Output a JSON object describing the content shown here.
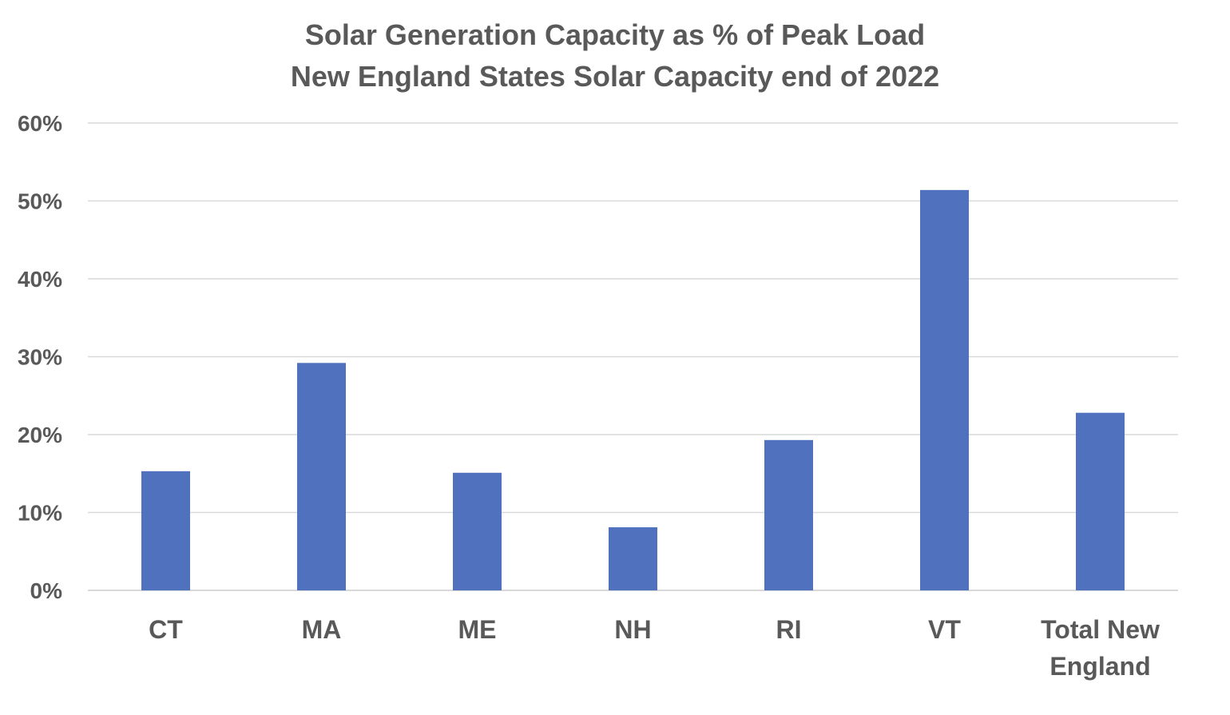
{
  "chart_data": {
    "type": "bar",
    "title": "Solar Generation Capacity as % of Peak Load",
    "subtitle": "New England States Solar Capacity end of 2022",
    "categories": [
      "CT",
      "MA",
      "ME",
      "NH",
      "RI",
      "VT",
      "Total New England"
    ],
    "values": [
      15.3,
      29.2,
      15.1,
      8.1,
      19.3,
      51.4,
      22.8
    ],
    "ylim": [
      0,
      60
    ],
    "yticks": [
      0,
      10,
      20,
      30,
      40,
      50,
      60
    ],
    "ytick_labels": [
      "0%",
      "10%",
      "20%",
      "30%",
      "40%",
      "50%",
      "60%"
    ],
    "xlabel": "",
    "ylabel": "",
    "grid": true,
    "bar_color": "#4f71be",
    "text_color": "#595959",
    "grid_color": "#d9d9d9"
  }
}
